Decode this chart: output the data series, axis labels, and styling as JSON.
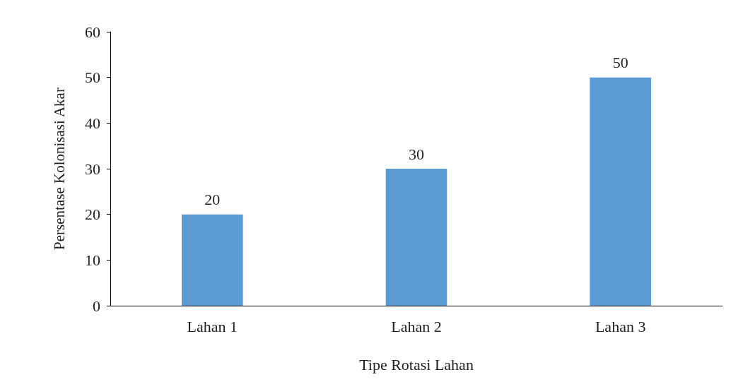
{
  "chart_data": {
    "type": "bar",
    "xlabel": "Tipe Rotasi Lahan",
    "ylabel": "Persentase Kolonisasi Akar",
    "categories": [
      "Lahan 1",
      "Lahan 2",
      "Lahan 3"
    ],
    "values": [
      20,
      30,
      50
    ],
    "color": "#5b9bd5",
    "ylim": [
      0,
      60
    ],
    "yticks": [
      0,
      10,
      20,
      30,
      40,
      50,
      60
    ],
    "grid": false,
    "data_labels": true
  }
}
